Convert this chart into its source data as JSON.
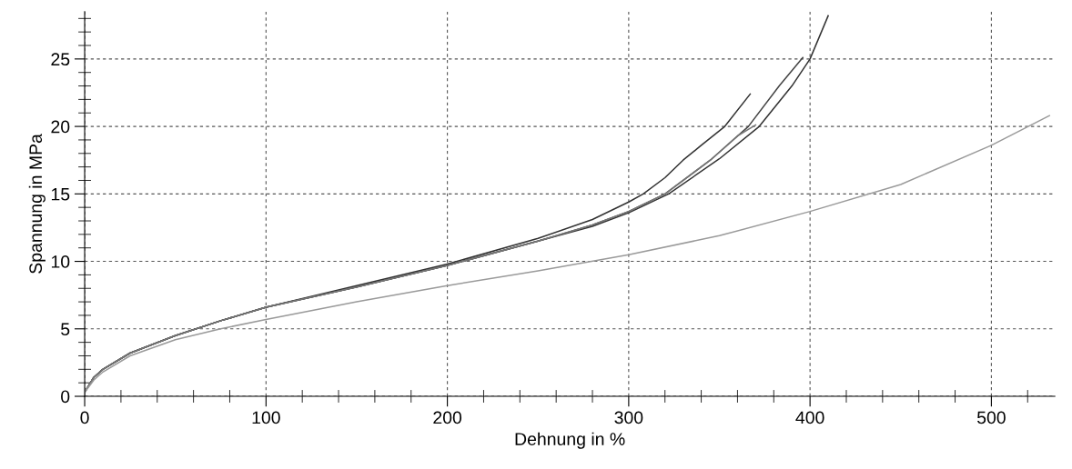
{
  "chart_data": {
    "type": "line",
    "xlabel": "Dehnung in %",
    "ylabel": "Spannung in MPa",
    "xlim": [
      0,
      535
    ],
    "ylim": [
      0,
      28.5
    ],
    "xticks": [
      0,
      100,
      200,
      300,
      400,
      500
    ],
    "yticks": [
      0,
      5,
      10,
      15,
      20,
      25
    ],
    "grid": true,
    "line_style": "solid",
    "marker": "none",
    "legend": false,
    "series": [
      {
        "color": "#333333",
        "x": [
          0,
          5,
          10,
          25,
          50,
          75,
          100,
          150,
          200,
          250,
          280,
          300,
          308,
          320,
          330,
          340,
          353,
          367
        ],
        "values": [
          0.3,
          1.4,
          2.0,
          3.2,
          4.5,
          5.6,
          6.6,
          8.2,
          9.8,
          11.7,
          13.1,
          14.4,
          15.0,
          16.2,
          17.5,
          18.6,
          20.0,
          22.4
        ]
      },
      {
        "color": "#333333",
        "x": [
          0,
          5,
          10,
          25,
          50,
          75,
          100,
          150,
          200,
          250,
          280,
          300,
          322,
          350,
          372,
          390,
          400,
          410
        ],
        "values": [
          0.3,
          1.4,
          2.0,
          3.2,
          4.5,
          5.6,
          6.6,
          8.1,
          9.7,
          11.5,
          12.6,
          13.6,
          15.0,
          17.6,
          20.0,
          23.0,
          25.0,
          28.2
        ]
      },
      {
        "color": "#444444",
        "x": [
          0,
          5,
          10,
          25,
          50,
          75,
          100,
          150,
          200,
          250,
          280,
          300,
          320,
          345,
          366,
          383,
          396
        ],
        "values": [
          0.3,
          1.4,
          2.0,
          3.2,
          4.5,
          5.6,
          6.6,
          8.1,
          9.7,
          11.5,
          12.7,
          13.7,
          15.0,
          17.5,
          20.0,
          23.0,
          25.1
        ]
      },
      {
        "color": "#777777",
        "x": [
          0,
          5,
          10,
          25,
          50,
          75,
          100,
          150,
          200,
          250,
          280,
          300,
          320,
          345,
          360,
          370
        ],
        "values": [
          0.3,
          1.4,
          2.0,
          3.2,
          4.5,
          5.6,
          6.6,
          8.1,
          9.7,
          11.5,
          12.7,
          13.7,
          15.0,
          17.5,
          19.3,
          20.1
        ]
      },
      {
        "color": "#9a9a9a",
        "x": [
          0,
          5,
          10,
          25,
          50,
          75,
          100,
          150,
          200,
          250,
          300,
          350,
          400,
          450,
          500,
          532
        ],
        "values": [
          0.3,
          1.2,
          1.8,
          3.0,
          4.2,
          5.0,
          5.7,
          7.0,
          8.2,
          9.3,
          10.5,
          11.9,
          13.7,
          15.7,
          18.6,
          20.8
        ]
      }
    ]
  }
}
